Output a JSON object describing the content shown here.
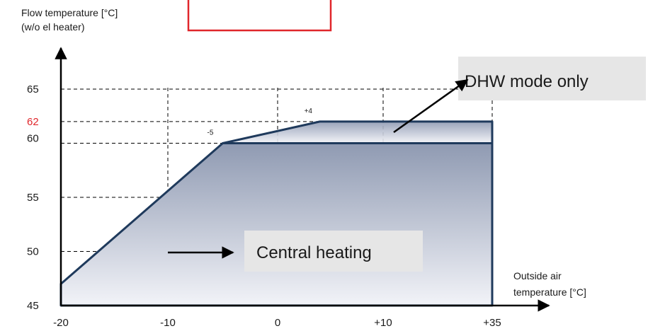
{
  "chart_data": {
    "type": "area",
    "title": "",
    "ylabel_lines": [
      "Flow temperature [°C]",
      "(w/o el heater)"
    ],
    "xlabel_lines": [
      "Outside air",
      "temperature [°C]"
    ],
    "x_ticks": [
      {
        "value": -20,
        "label": "-20"
      },
      {
        "value": -10,
        "label": "-10"
      },
      {
        "value": 0,
        "label": "0"
      },
      {
        "value": 10,
        "label": "+10"
      },
      {
        "value": 35,
        "label": "+35"
      }
    ],
    "y_ticks": [
      {
        "value": 45,
        "label": "45",
        "color": "#1a1a1a"
      },
      {
        "value": 50,
        "label": "50",
        "color": "#1a1a1a"
      },
      {
        "value": 55,
        "label": "55",
        "color": "#1a1a1a"
      },
      {
        "value": 60,
        "label": "60",
        "color": "#1a1a1a"
      },
      {
        "value": 62,
        "label": "62",
        "color": "#e0262b"
      },
      {
        "value": 65,
        "label": "65",
        "color": "#1a1a1a"
      }
    ],
    "ylim": [
      45,
      65
    ],
    "grid": true,
    "series": [
      {
        "name": "Central heating",
        "points": [
          [
            -20,
            47
          ],
          [
            -5,
            60
          ],
          [
            35,
            60
          ],
          [
            35,
            45
          ],
          [
            -20,
            45
          ]
        ]
      },
      {
        "name": "DHW mode only",
        "points": [
          [
            -5,
            60
          ],
          [
            4,
            62
          ],
          [
            35,
            62
          ],
          [
            35,
            60
          ]
        ]
      }
    ],
    "point_annotations": [
      {
        "label": "-5",
        "x": -5,
        "y": 60
      },
      {
        "label": "+4",
        "x": 4,
        "y": 62
      }
    ],
    "annotations": [
      {
        "text": "DHW mode only",
        "target_series": "DHW mode only"
      },
      {
        "text": "Central heating",
        "target_series": "Central heating"
      }
    ],
    "colors": {
      "outline": "#1f3a5c",
      "fill_top": "#8f9ab2",
      "fill_bottom": "#f2f3f8",
      "label_box": "#e6e6e6",
      "highlight_box_border": "#e0262b",
      "axis": "#000000",
      "grid": "#000000"
    }
  }
}
